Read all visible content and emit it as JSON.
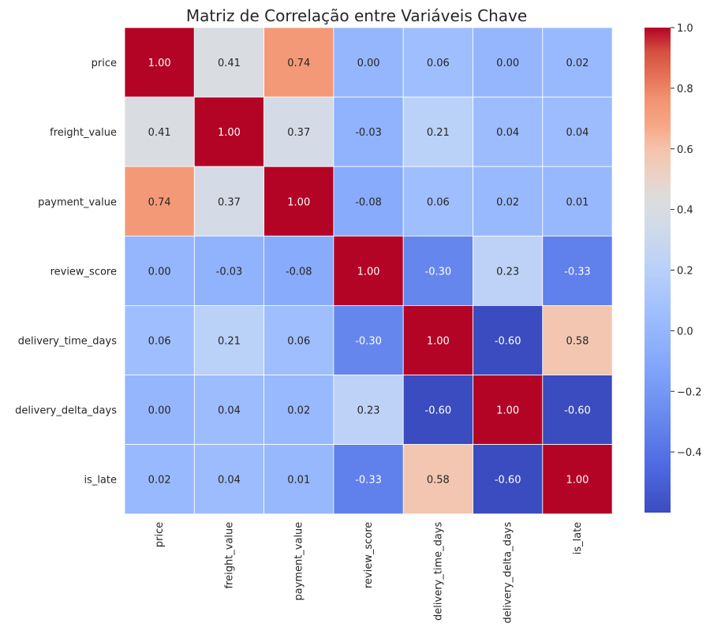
{
  "chart_data": {
    "type": "heatmap",
    "title": "Matriz de Correlação entre Variáveis Chave",
    "variables": [
      "price",
      "freight_value",
      "payment_value",
      "review_score",
      "delivery_time_days",
      "delivery_delta_days",
      "is_late"
    ],
    "matrix": [
      [
        1.0,
        0.41,
        0.74,
        0.0,
        0.06,
        0.0,
        0.02
      ],
      [
        0.41,
        1.0,
        0.37,
        -0.03,
        0.21,
        0.04,
        0.04
      ],
      [
        0.74,
        0.37,
        1.0,
        -0.08,
        0.06,
        0.02,
        0.01
      ],
      [
        0.0,
        -0.03,
        -0.08,
        1.0,
        -0.3,
        0.23,
        -0.33
      ],
      [
        0.06,
        0.21,
        0.06,
        -0.3,
        1.0,
        -0.6,
        0.58
      ],
      [
        0.0,
        0.04,
        0.02,
        0.23,
        -0.6,
        1.0,
        -0.6
      ],
      [
        0.02,
        0.04,
        0.01,
        -0.33,
        0.58,
        -0.6,
        1.0
      ]
    ],
    "colormap": "coolwarm",
    "vmin": -0.6,
    "vmax": 1.0,
    "colorbar_ticks": [
      1.0,
      0.8,
      0.6,
      0.4,
      0.2,
      0.0,
      -0.2,
      -0.4
    ],
    "colorbar_tick_labels": [
      "1.0",
      "0.8",
      "0.6",
      "0.4",
      "0.2",
      "0.0",
      "−0.2",
      "−0.4"
    ],
    "annotation_format": "2 decimals",
    "grid_line_color": "#ffffff"
  }
}
